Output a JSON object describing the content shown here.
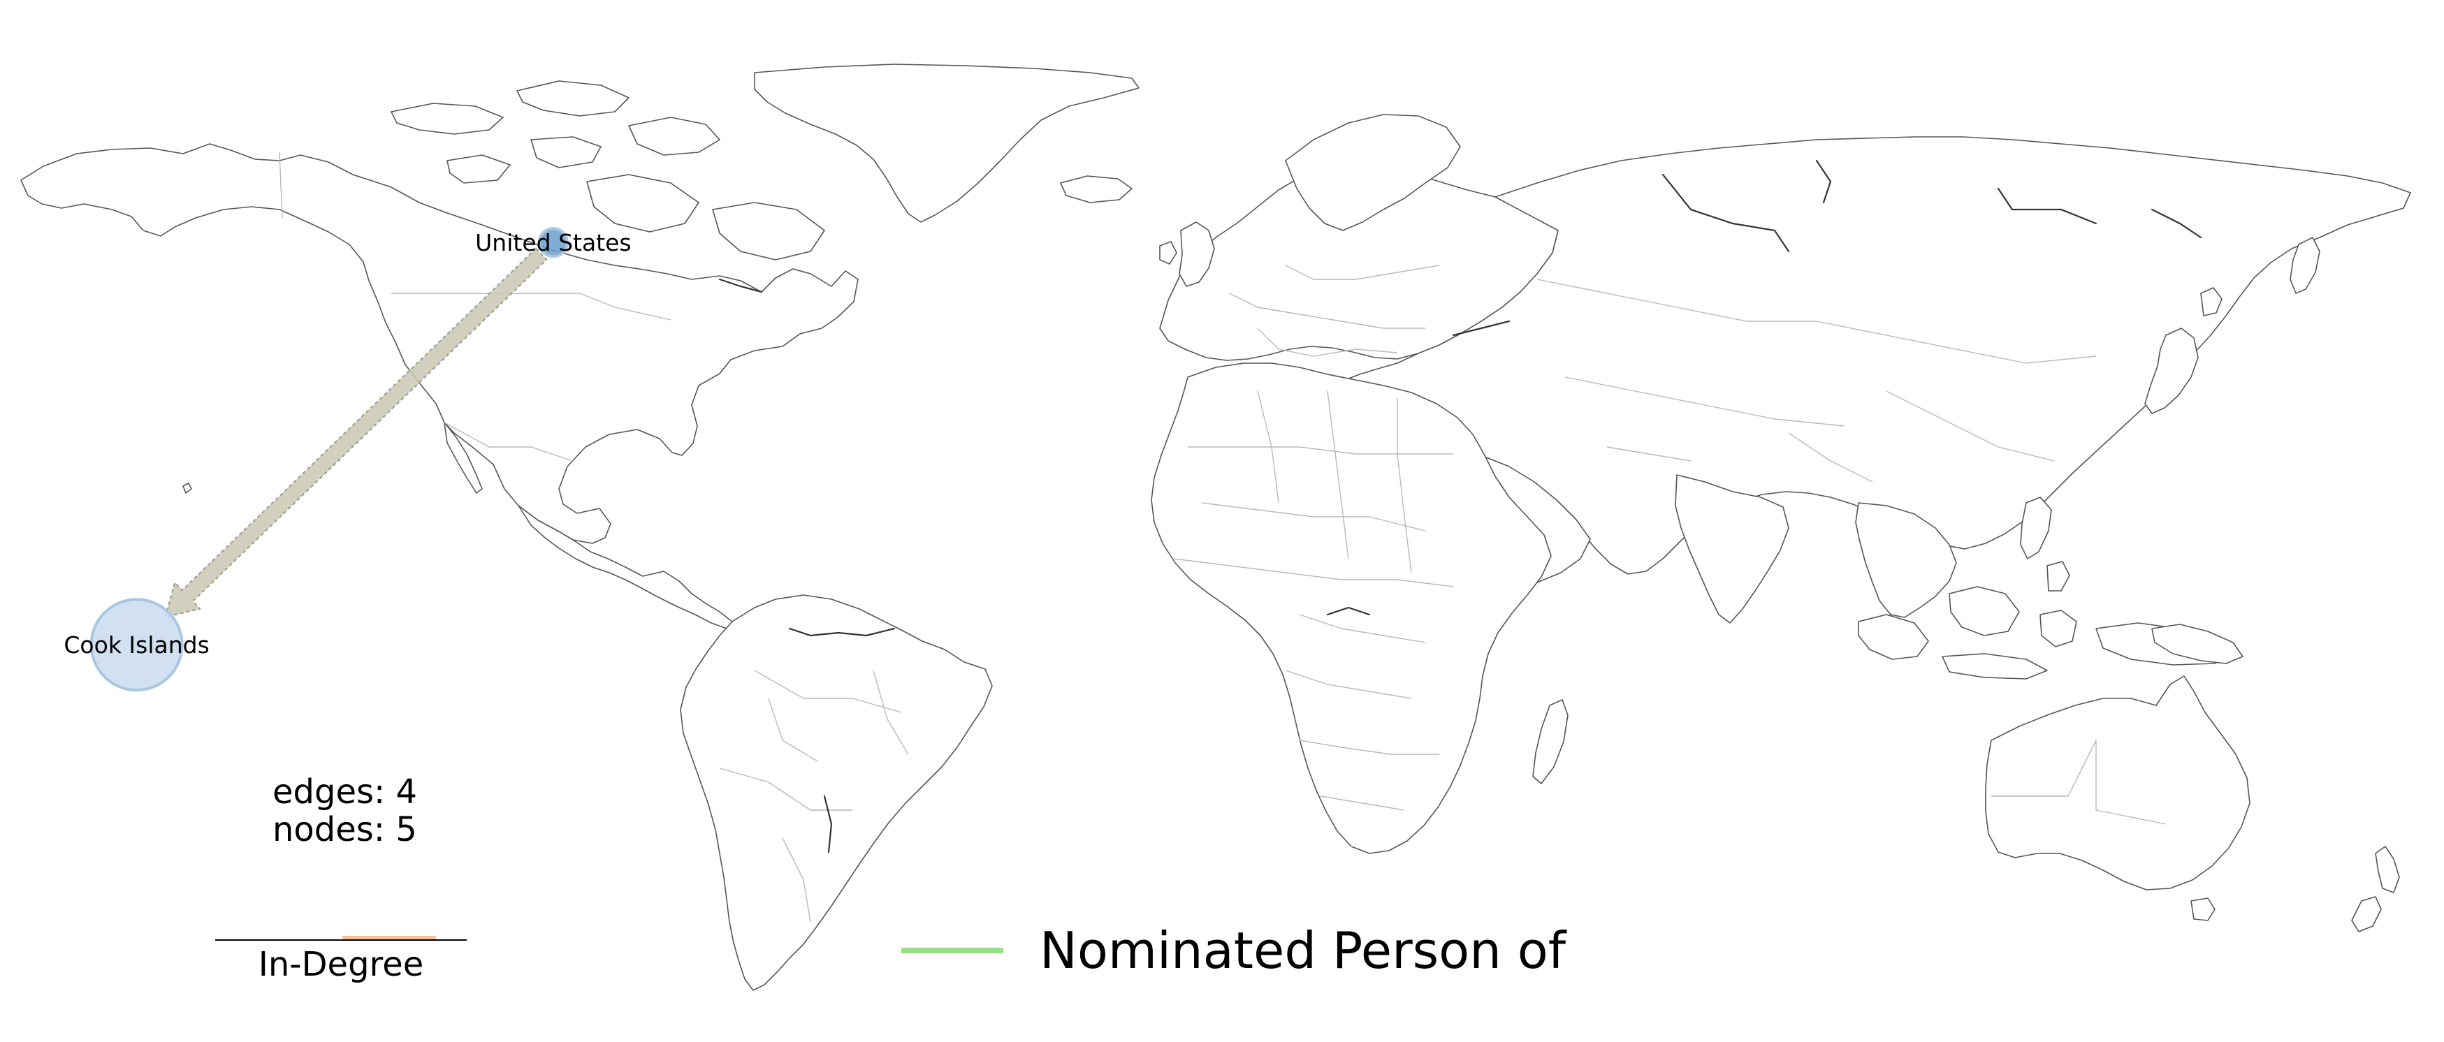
{
  "nodes": [
    {
      "label": "United States",
      "lon": -98.5,
      "lat": 39.5,
      "in_degree": 1,
      "color": "#6a9fcc"
    },
    {
      "label": "Cook Islands",
      "lon": -159.8,
      "lat": -21.2,
      "in_degree": 4,
      "color": "#c9dcee"
    }
  ],
  "edges": [
    {
      "source": "United States",
      "target": "Cook Islands",
      "color": "#c9c8b4",
      "relation": "Nominated Person of"
    }
  ],
  "stats": {
    "edges_text": "edges: 4",
    "nodes_text": "nodes: 5"
  },
  "legend": {
    "size_title": "In-Degree",
    "size_bar_color": "#f2c396",
    "edge_label": "Nominated Person of",
    "edge_color": "#98df8a"
  },
  "colors": {
    "land_stroke": "#555555",
    "border_stroke": "#b9b9b9",
    "background": "#ffffff"
  }
}
